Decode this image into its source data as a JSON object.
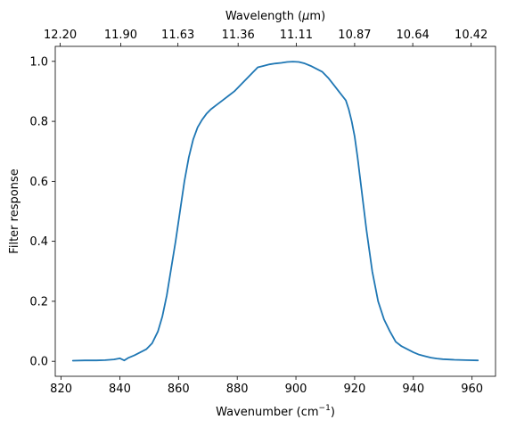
{
  "chart_data": {
    "type": "line",
    "title": "",
    "xlabel": "Wavenumber (cm",
    "xlabel_sup": "−1",
    "xlabel_close": ")",
    "ylabel": "Filter response",
    "top_axis_label_prefix": "Wavelength (",
    "top_axis_label_mu": "μ",
    "top_axis_label_suffix": "m)",
    "xlim": [
      818,
      968
    ],
    "ylim": [
      -0.05,
      1.05
    ],
    "grid": false,
    "legend": "none",
    "color": "#1f77b4",
    "x_ticks": [
      820,
      840,
      860,
      880,
      900,
      920,
      940,
      960
    ],
    "x_tick_labels": [
      "820",
      "840",
      "860",
      "880",
      "900",
      "920",
      "940",
      "960"
    ],
    "y_ticks": [
      0.0,
      0.2,
      0.4,
      0.6,
      0.8,
      1.0
    ],
    "y_tick_labels": [
      "0.0",
      "0.2",
      "0.4",
      "0.6",
      "0.8",
      "1.0"
    ],
    "top_ticks": [
      {
        "wavenumber": 819.7,
        "label": "12.20"
      },
      {
        "wavenumber": 840.3,
        "label": "11.90"
      },
      {
        "wavenumber": 859.8,
        "label": "11.63"
      },
      {
        "wavenumber": 880.3,
        "label": "11.36"
      },
      {
        "wavenumber": 900.1,
        "label": "11.11"
      },
      {
        "wavenumber": 920.0,
        "label": "10.87"
      },
      {
        "wavenumber": 939.8,
        "label": "10.64"
      },
      {
        "wavenumber": 959.7,
        "label": "10.42"
      }
    ],
    "series": [
      {
        "x": [
          824,
          828,
          832,
          835,
          838,
          840,
          841.5,
          843,
          845,
          847,
          849,
          851,
          853,
          854.5,
          856,
          857.5,
          859,
          860.5,
          862,
          863.5,
          865,
          866.5,
          868,
          869.5,
          871,
          873,
          875,
          877,
          879,
          881,
          883,
          885,
          887,
          889,
          891,
          893,
          895,
          897,
          899,
          901,
          903,
          905,
          907,
          909,
          911,
          913,
          915,
          917,
          918,
          919,
          920,
          921,
          922,
          923,
          924,
          925,
          926,
          927,
          928,
          930,
          932,
          934,
          936,
          938,
          940,
          942,
          944,
          946,
          948,
          950,
          954,
          958,
          962
        ],
        "y": [
          0.002,
          0.003,
          0.003,
          0.004,
          0.006,
          0.01,
          0.003,
          0.012,
          0.02,
          0.03,
          0.04,
          0.06,
          0.1,
          0.15,
          0.22,
          0.31,
          0.4,
          0.5,
          0.6,
          0.68,
          0.74,
          0.78,
          0.805,
          0.825,
          0.84,
          0.855,
          0.87,
          0.885,
          0.9,
          0.92,
          0.94,
          0.96,
          0.98,
          0.985,
          0.99,
          0.993,
          0.995,
          0.998,
          0.999,
          0.998,
          0.993,
          0.985,
          0.975,
          0.965,
          0.945,
          0.92,
          0.895,
          0.87,
          0.84,
          0.8,
          0.75,
          0.68,
          0.6,
          0.52,
          0.44,
          0.37,
          0.3,
          0.25,
          0.2,
          0.14,
          0.1,
          0.065,
          0.05,
          0.04,
          0.03,
          0.022,
          0.017,
          0.012,
          0.009,
          0.007,
          0.005,
          0.004,
          0.003
        ]
      }
    ]
  }
}
